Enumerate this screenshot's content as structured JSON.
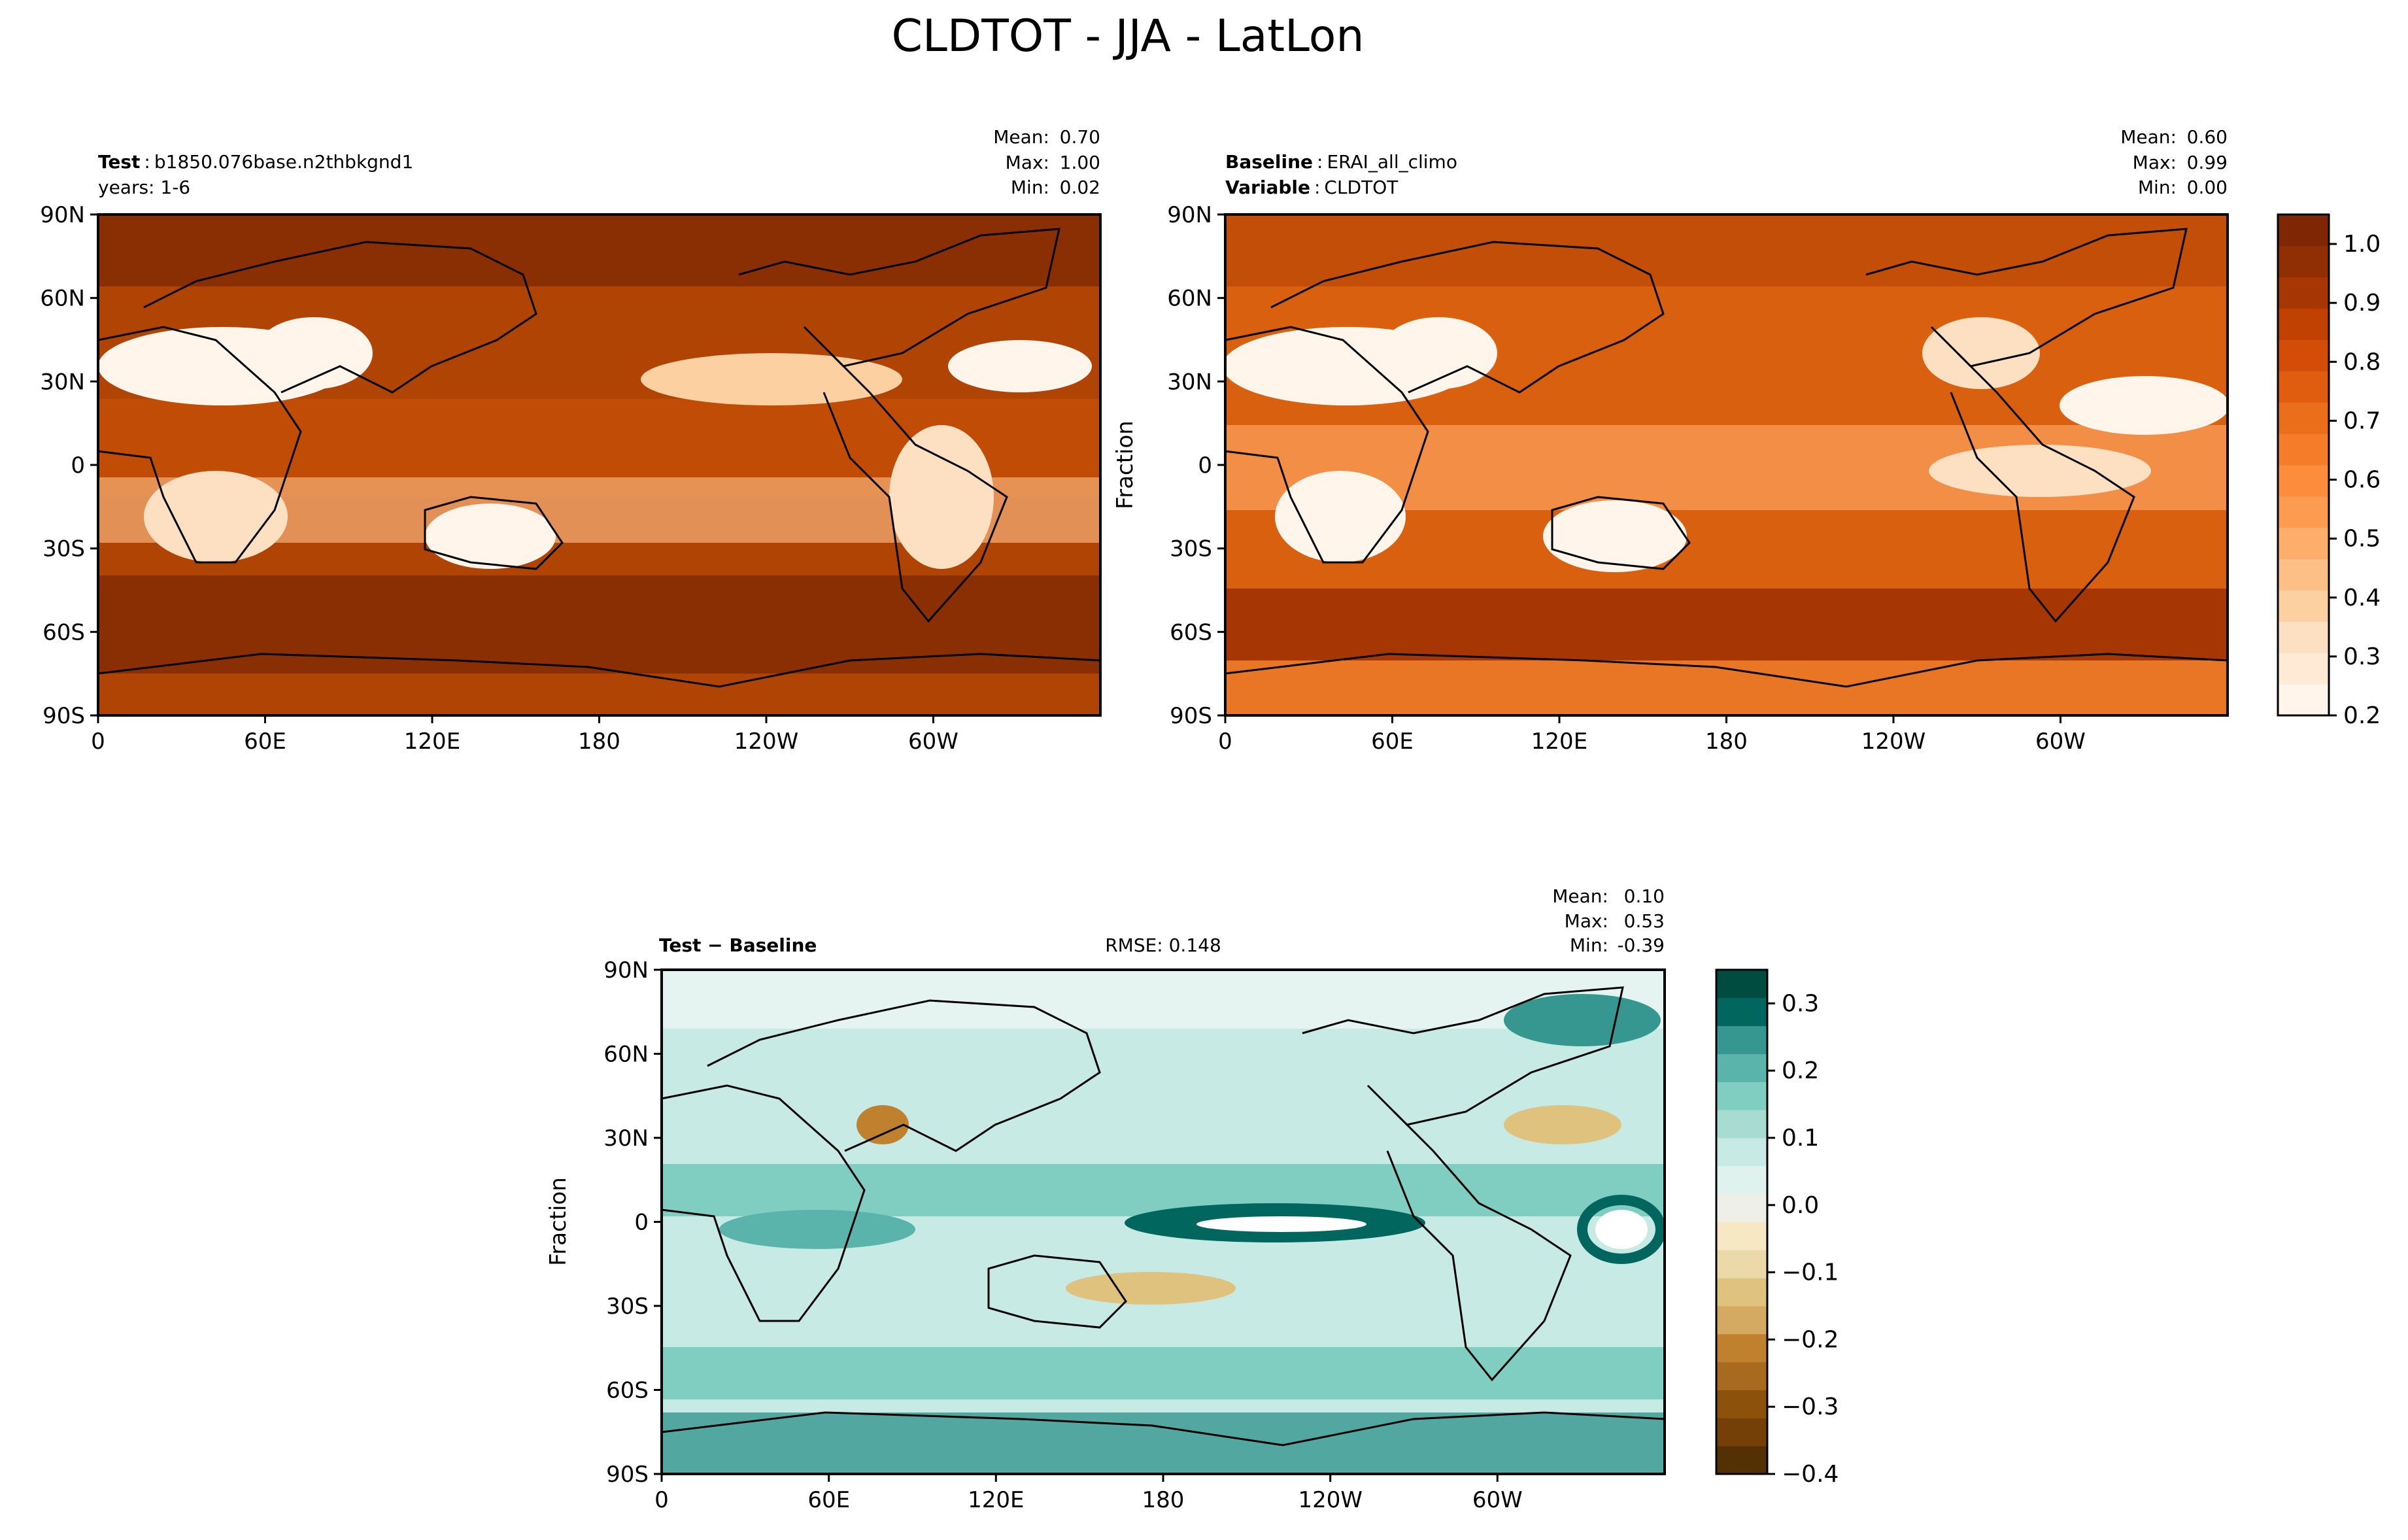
{
  "figure": {
    "title": "CLDTOT - JJA - LatLon"
  },
  "panels": {
    "test": {
      "left_label": "Test",
      "left_value": "b1850.076base.n2thbkgnd1",
      "left_label2": "",
      "left_value2": "years: 1-6",
      "stats": {
        "mean_label": "Mean:",
        "mean": "0.70",
        "max_label": "Max:",
        "max": "1.00",
        "min_label": "Min:",
        "min": "0.02"
      }
    },
    "baseline": {
      "left_label": "Baseline",
      "left_value": "ERAI_all_climo",
      "left_label2": "Variable",
      "left_value2": "CLDTOT",
      "stats": {
        "mean_label": "Mean:",
        "mean": "0.60",
        "max_label": "Max:",
        "max": "0.99",
        "min_label": "Min:",
        "min": "0.00"
      },
      "colorbar_label": "Fraction"
    },
    "diff": {
      "left_label": "Test − Baseline",
      "center_label": "RMSE: 0.148",
      "stats": {
        "mean_label": "Mean:",
        "mean": "0.10",
        "max_label": "Max:",
        "max": "0.53",
        "min_label": "Min:",
        "min": "-0.39"
      },
      "colorbar_label": "Fraction"
    }
  },
  "chart_data": [
    {
      "type": "heatmap",
      "panel": "test",
      "x_ticks": [
        "0",
        "60E",
        "120E",
        "180",
        "120W",
        "60W"
      ],
      "y_ticks": [
        "90N",
        "60N",
        "30N",
        "0",
        "30S",
        "60S",
        "90S"
      ],
      "colormap": "Oranges",
      "stats": {
        "mean": 0.7,
        "max": 1.0,
        "min": 0.02
      }
    },
    {
      "type": "heatmap",
      "panel": "baseline",
      "x_ticks": [
        "0",
        "60E",
        "120E",
        "180",
        "120W",
        "60W"
      ],
      "y_ticks": [
        "90N",
        "60N",
        "30N",
        "0",
        "30S",
        "60S",
        "90S"
      ],
      "colormap": "Oranges",
      "stats": {
        "mean": 0.6,
        "max": 0.99,
        "min": 0.0
      },
      "colorbar": {
        "ticks": [
          "1.0",
          "0.9",
          "0.8",
          "0.7",
          "0.6",
          "0.5",
          "0.4",
          "0.3",
          "0.2"
        ],
        "range": [
          0.2,
          1.05
        ],
        "colors": [
          "#fff5eb",
          "#feead5",
          "#fde0c2",
          "#fdd0a2",
          "#fdbf86",
          "#fdae6b",
          "#fd9c51",
          "#fd8d3c",
          "#f57d2a",
          "#eb6e1a",
          "#e05d10",
          "#d34d08",
          "#c04102",
          "#a63603",
          "#8f2f03",
          "#7f2704"
        ]
      }
    },
    {
      "type": "heatmap",
      "panel": "diff",
      "x_ticks": [
        "0",
        "60E",
        "120E",
        "180",
        "120W",
        "60W"
      ],
      "y_ticks": [
        "90N",
        "60N",
        "30N",
        "0",
        "30S",
        "60S",
        "90S"
      ],
      "colormap": "BrBG",
      "stats": {
        "mean": 0.1,
        "max": 0.53,
        "min": -0.39,
        "rmse": 0.148
      },
      "colorbar": {
        "ticks": [
          "0.3",
          "0.2",
          "0.1",
          "0.0",
          "−0.1",
          "−0.2",
          "−0.3",
          "−0.4"
        ],
        "range": [
          -0.4,
          0.35
        ],
        "colors": [
          "#543005",
          "#744008",
          "#8c510a",
          "#a86a1f",
          "#bf812d",
          "#d4aa62",
          "#dfc27d",
          "#ecd9a9",
          "#f6e8c3",
          "#eef0e8",
          "#e0f2ee",
          "#c7eae5",
          "#a8dcd2",
          "#80cdc1",
          "#5ab4ac",
          "#35978f",
          "#01665e",
          "#004c40"
        ]
      }
    }
  ]
}
